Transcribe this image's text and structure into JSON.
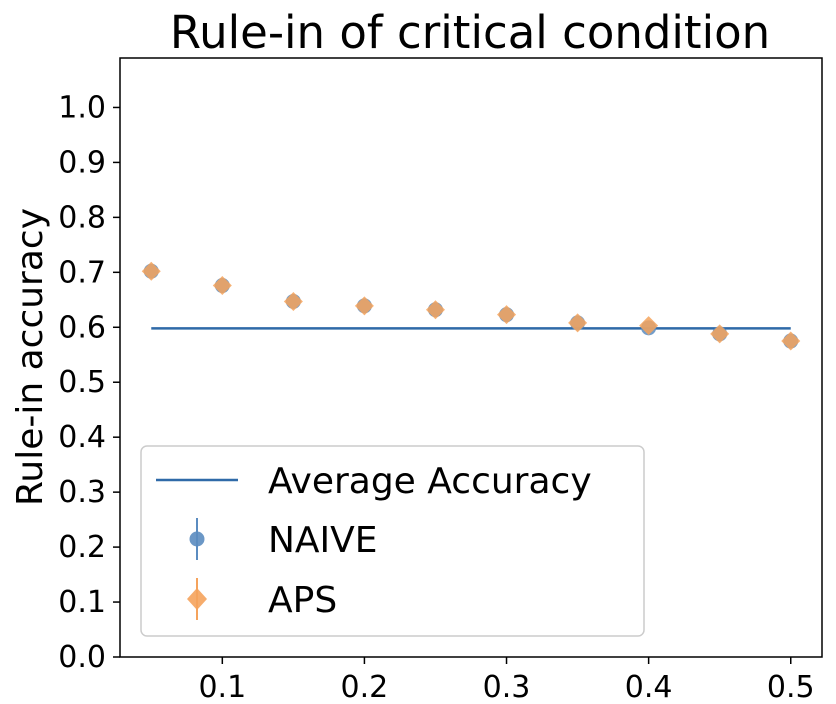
{
  "chart_data": {
    "type": "scatter",
    "title": "Rule-in of critical condition",
    "xlabel": "",
    "ylabel": "Rule-in accuracy",
    "xlim": [
      0.028,
      0.522
    ],
    "ylim": [
      0.0,
      1.09
    ],
    "xticks": [
      0.1,
      0.2,
      0.3,
      0.4,
      0.5
    ],
    "xtick_labels": [
      "0.1",
      "0.2",
      "0.3",
      "0.4",
      "0.5"
    ],
    "yticks": [
      0.0,
      0.1,
      0.2,
      0.3,
      0.4,
      0.5,
      0.6,
      0.7,
      0.8,
      0.9,
      1.0
    ],
    "ytick_labels": [
      "0.0",
      "0.1",
      "0.2",
      "0.3",
      "0.4",
      "0.5",
      "0.6",
      "0.7",
      "0.8",
      "0.9",
      "1.0"
    ],
    "grid": false,
    "legend_position": "lower-left",
    "x": [
      0.05,
      0.1,
      0.15,
      0.2,
      0.25,
      0.3,
      0.35,
      0.4,
      0.45,
      0.5
    ],
    "series": [
      {
        "name": "Average Accuracy",
        "kind": "line",
        "color": "#2f6aa8",
        "x": [
          0.05,
          0.5
        ],
        "values": [
          0.598,
          0.598
        ]
      },
      {
        "name": "NAIVE",
        "kind": "errorbar-circle",
        "color": "#5b8cc0",
        "values": [
          0.702,
          0.676,
          0.647,
          0.639,
          0.632,
          0.623,
          0.608,
          0.599,
          0.588,
          0.575
        ]
      },
      {
        "name": "APS",
        "kind": "errorbar-diamond",
        "color": "#f5a35c",
        "values": [
          0.702,
          0.676,
          0.647,
          0.639,
          0.632,
          0.623,
          0.608,
          0.603,
          0.588,
          0.575
        ]
      }
    ]
  }
}
